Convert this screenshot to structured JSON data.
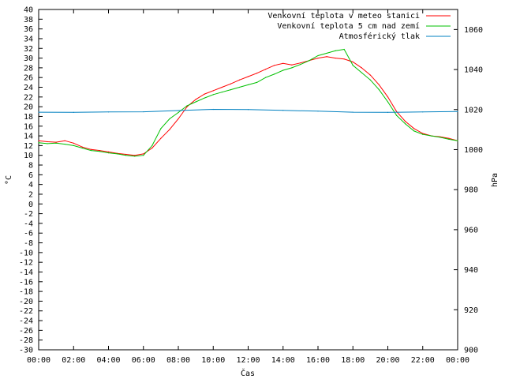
{
  "chart_data": {
    "type": "line",
    "xlabel": "Čas",
    "ylabel": "°C",
    "y2label": "hPa",
    "x_ticks": [
      "00:00",
      "02:00",
      "04:00",
      "06:00",
      "08:00",
      "10:00",
      "12:00",
      "14:00",
      "16:00",
      "18:00",
      "20:00",
      "22:00",
      "00:00"
    ],
    "xlim": [
      0,
      24
    ],
    "ylim": [
      -30,
      40
    ],
    "y_ticks": [
      -30,
      -28,
      -26,
      -24,
      -22,
      -20,
      -18,
      -16,
      -14,
      -12,
      -10,
      -8,
      -6,
      -4,
      -2,
      0,
      2,
      4,
      6,
      8,
      10,
      12,
      14,
      16,
      18,
      20,
      22,
      24,
      26,
      28,
      30,
      32,
      34,
      36,
      38,
      40
    ],
    "y2lim": [
      900,
      1070
    ],
    "y2_ticks": [
      900,
      920,
      940,
      960,
      980,
      1000,
      1020,
      1040,
      1060
    ],
    "grid": false,
    "legend_position": "top-right",
    "series": [
      {
        "name": "Venkovní teplota v meteo stanici",
        "color": "#ff0000",
        "axis": "left",
        "x": [
          0,
          0.5,
          1,
          1.5,
          2,
          2.5,
          3,
          3.5,
          4,
          4.5,
          5,
          5.5,
          6,
          6.5,
          7,
          7.5,
          8,
          8.5,
          9,
          9.5,
          10,
          10.5,
          11,
          11.5,
          12,
          12.5,
          13,
          13.5,
          14,
          14.5,
          15,
          15.5,
          16,
          16.5,
          17,
          17.5,
          18,
          18.5,
          19,
          19.5,
          20,
          20.5,
          21,
          21.5,
          22,
          22.5,
          23,
          23.5,
          24
        ],
        "values": [
          13,
          12.8,
          12.7,
          13,
          12.5,
          11.7,
          11.2,
          11,
          10.7,
          10.4,
          10.2,
          10,
          10.3,
          11.5,
          13.5,
          15.3,
          17.5,
          20,
          21.5,
          22.6,
          23.3,
          24,
          24.7,
          25.5,
          26.2,
          26.9,
          27.7,
          28.5,
          28.9,
          28.6,
          29,
          29.5,
          30,
          30.3,
          30,
          29.8,
          29.2,
          28,
          26.5,
          24.5,
          22,
          19,
          17,
          15.5,
          14.5,
          14,
          13.8,
          13.5,
          13
        ]
      },
      {
        "name": "Venkovní teplota 5 cm nad zemí",
        "color": "#00c000",
        "axis": "left",
        "x": [
          0,
          0.5,
          1,
          1.5,
          2,
          2.5,
          3,
          3.5,
          4,
          4.5,
          5,
          5.5,
          6,
          6.5,
          7,
          7.5,
          8,
          8.5,
          9,
          9.5,
          10,
          10.5,
          11,
          11.5,
          12,
          12.5,
          13,
          13.5,
          14,
          14.5,
          15,
          15.5,
          16,
          16.5,
          17,
          17.5,
          18,
          18.5,
          19,
          19.5,
          20,
          20.5,
          21,
          21.5,
          22,
          22.5,
          23,
          23.5,
          24
        ],
        "values": [
          12.6,
          12.4,
          12.5,
          12.3,
          12,
          11.5,
          11,
          10.8,
          10.5,
          10.3,
          10,
          9.8,
          10,
          12,
          15.5,
          17.5,
          18.8,
          20.2,
          21,
          21.8,
          22.5,
          23,
          23.5,
          24,
          24.5,
          25,
          26,
          26.7,
          27.5,
          28,
          28.7,
          29.5,
          30.5,
          31,
          31.5,
          31.8,
          28.5,
          27,
          25.5,
          23.5,
          21,
          18.2,
          16.5,
          15,
          14.3,
          14,
          13.7,
          13.3,
          13
        ]
      },
      {
        "name": "Atmosférický tlak",
        "color": "#0080c0",
        "axis": "right",
        "x": [
          0,
          2,
          4,
          6,
          8,
          10,
          12,
          14,
          16,
          18,
          20,
          22,
          24
        ],
        "values": [
          1018.7,
          1018.6,
          1018.8,
          1018.9,
          1019.5,
          1020.1,
          1020,
          1019.6,
          1019.2,
          1018.7,
          1018.6,
          1018.8,
          1019
        ]
      }
    ]
  }
}
